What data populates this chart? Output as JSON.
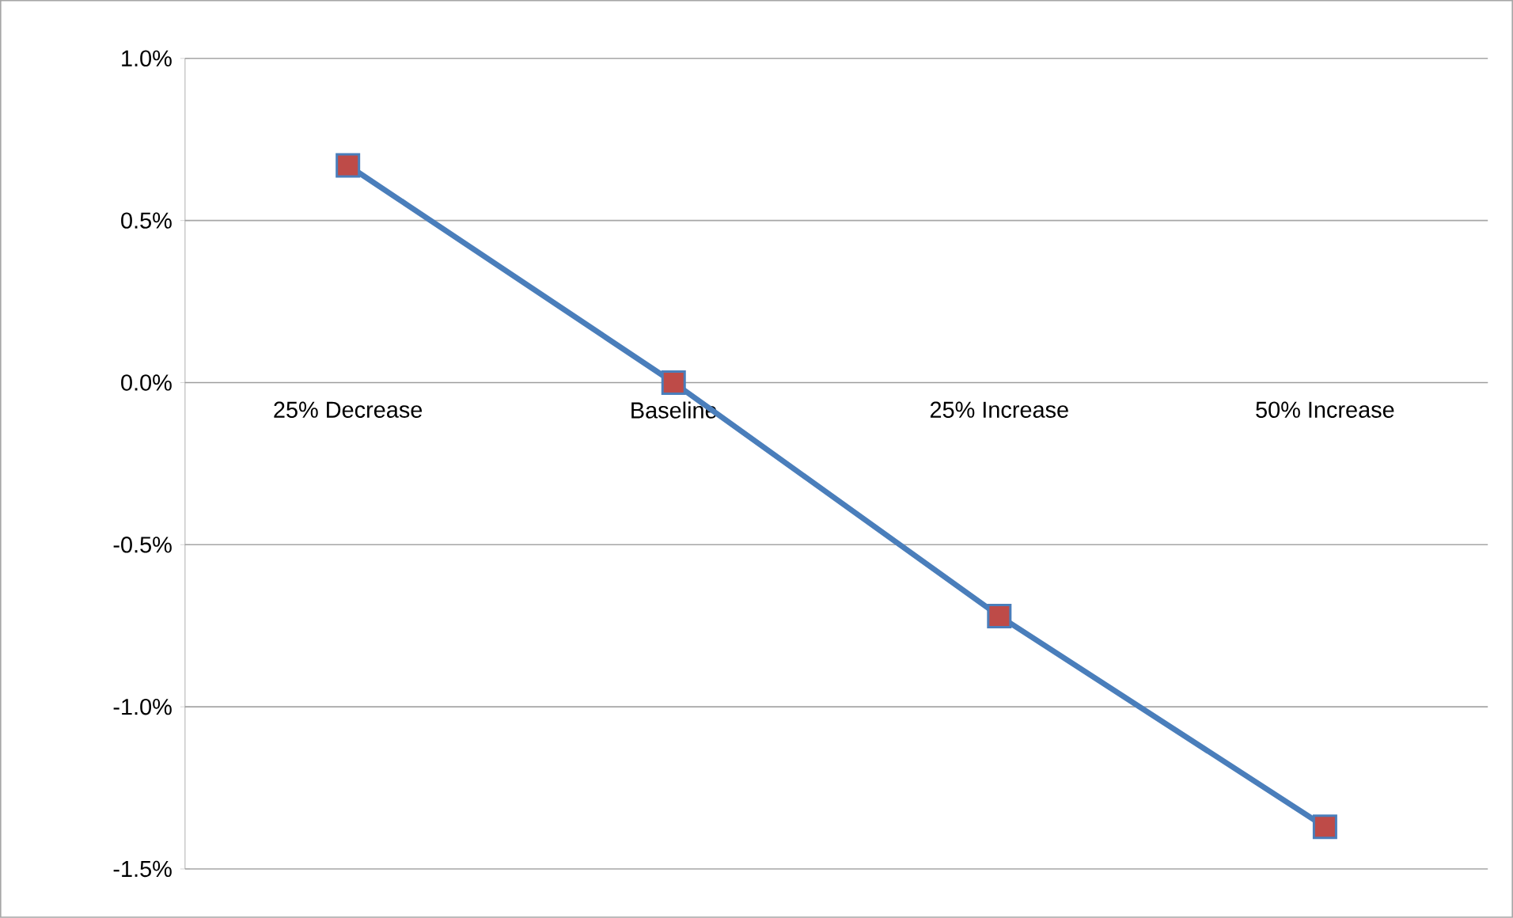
{
  "chart_data": {
    "type": "line",
    "categories": [
      "25% Decrease",
      "Baseline",
      "25% Increase",
      "50% Increase"
    ],
    "series": [
      {
        "color": "#4a7ebb",
        "colors": [
          "#be4b48",
          "#be4b48",
          "#be4b48",
          "#be4b48"
        ],
        "values": [
          0.67,
          0,
          -0.72,
          -1.37
        ]
      }
    ],
    "ylim": [
      -1.5,
      1
    ],
    "yticks": [
      {
        "value": 1,
        "label": "1.0%"
      },
      {
        "value": 0.5,
        "label": "0.5%"
      },
      {
        "value": 0,
        "label": "0.0%"
      },
      {
        "value": -0.5,
        "label": "-0.5%"
      },
      {
        "value": -1,
        "label": "-1.0%"
      },
      {
        "value": -1.5,
        "label": "-1.5%"
      }
    ],
    "grid": "y",
    "marker": "square",
    "line_style": "solid"
  }
}
